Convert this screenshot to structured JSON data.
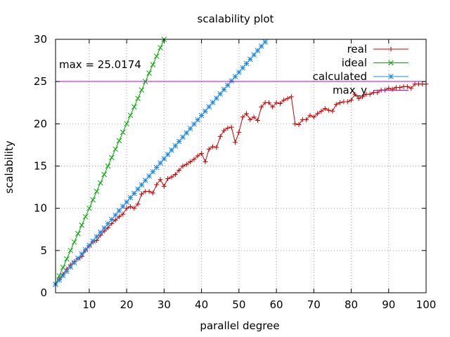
{
  "chart_data": {
    "type": "line",
    "title": "scalability plot",
    "xlabel": "parallel degree",
    "ylabel": "scalability",
    "xlim": [
      1,
      100
    ],
    "ylim": [
      0,
      30
    ],
    "xticks": [
      10,
      20,
      30,
      40,
      50,
      60,
      70,
      80,
      90,
      100
    ],
    "yticks": [
      0,
      5,
      10,
      15,
      20,
      25,
      30
    ],
    "grid": true,
    "legend_position": "top-right",
    "annotation": "max = 25.0174",
    "series": [
      {
        "name": "real",
        "color": "#cc0000",
        "marker": "plus",
        "x": [
          1,
          2,
          3,
          4,
          5,
          6,
          7,
          8,
          9,
          10,
          11,
          12,
          13,
          14,
          15,
          16,
          17,
          18,
          19,
          20,
          21,
          22,
          23,
          24,
          25,
          26,
          27,
          28,
          29,
          30,
          31,
          32,
          33,
          34,
          35,
          36,
          37,
          38,
          39,
          40,
          41,
          42,
          43,
          44,
          45,
          46,
          47,
          48,
          49,
          50,
          51,
          52,
          53,
          54,
          55,
          56,
          57,
          58,
          59,
          60,
          61,
          62,
          63,
          64,
          65,
          66,
          67,
          68,
          69,
          70,
          71,
          72,
          73,
          74,
          75,
          76,
          77,
          78,
          79,
          80,
          81,
          82,
          83,
          84,
          85,
          86,
          87,
          88,
          89,
          90,
          91,
          92,
          93,
          94,
          95,
          96,
          97,
          98,
          99,
          100
        ],
        "values": [
          1.0,
          1.6,
          2.2,
          2.8,
          3.3,
          3.7,
          4.0,
          4.3,
          5.0,
          5.5,
          6.0,
          6.2,
          6.8,
          7.3,
          7.7,
          8.2,
          8.6,
          9.0,
          9.3,
          10.0,
          10.2,
          10.0,
          10.5,
          11.7,
          12.0,
          12.0,
          11.8,
          12.8,
          13.4,
          12.6,
          13.5,
          13.7,
          14.0,
          14.5,
          15.0,
          15.2,
          15.5,
          15.8,
          16.2,
          16.5,
          15.5,
          17.0,
          17.3,
          17.2,
          18.5,
          19.2,
          19.5,
          19.6,
          17.8,
          19.0,
          20.8,
          21.2,
          20.5,
          20.8,
          20.4,
          22.0,
          22.5,
          22.5,
          22.0,
          22.5,
          22.4,
          22.8,
          23.0,
          23.2,
          20.0,
          19.9,
          20.5,
          20.5,
          21.0,
          20.8,
          21.2,
          21.5,
          21.8,
          21.6,
          21.5,
          22.3,
          22.5,
          22.6,
          22.6,
          22.8,
          23.5,
          23.0,
          23.2,
          23.5,
          23.5,
          23.7,
          23.7,
          24.0,
          24.0,
          24.2,
          24.1,
          24.3,
          24.3,
          24.4,
          24.4,
          24.2,
          24.7,
          24.7,
          24.7,
          24.7
        ]
      },
      {
        "name": "ideal",
        "color": "#00aa00",
        "marker": "x",
        "x": [
          1,
          2,
          3,
          4,
          5,
          6,
          7,
          8,
          9,
          10,
          11,
          12,
          13,
          14,
          15,
          16,
          17,
          18,
          19,
          20,
          21,
          22,
          23,
          24,
          25,
          26,
          27,
          28,
          29,
          30
        ],
        "values": [
          1,
          2,
          3,
          4,
          5,
          6,
          7,
          8,
          9,
          10,
          11,
          12,
          13,
          14,
          15,
          16,
          17,
          18,
          19,
          20,
          21,
          22,
          23,
          24,
          25,
          26,
          27,
          28,
          29,
          30
        ]
      },
      {
        "name": "calculated",
        "color": "#1e88e5",
        "marker": "star",
        "x": [
          1,
          2,
          3,
          4,
          5,
          6,
          7,
          8,
          9,
          10,
          11,
          12,
          13,
          14,
          15,
          16,
          17,
          18,
          19,
          20,
          21,
          22,
          23,
          24,
          25,
          26,
          27,
          28,
          29,
          30,
          31,
          32,
          33,
          34,
          35,
          36,
          37,
          38,
          39,
          40,
          41,
          42,
          43,
          44,
          45,
          46,
          47,
          48,
          49,
          50,
          51,
          52,
          53,
          54,
          55,
          56,
          57
        ],
        "values": [
          1.0,
          1.51,
          2.02,
          2.54,
          3.05,
          3.56,
          4.07,
          4.59,
          5.1,
          5.61,
          6.12,
          6.64,
          7.15,
          7.66,
          8.17,
          8.68,
          9.2,
          9.71,
          10.22,
          10.73,
          11.25,
          11.76,
          12.27,
          12.78,
          13.3,
          13.81,
          14.32,
          14.83,
          15.35,
          15.86,
          16.37,
          16.88,
          17.39,
          17.91,
          18.42,
          18.93,
          19.44,
          19.96,
          20.47,
          20.98,
          21.49,
          22.01,
          22.52,
          23.03,
          23.54,
          24.06,
          24.57,
          25.08,
          25.59,
          26.1,
          26.62,
          27.13,
          27.64,
          28.15,
          28.67,
          29.18,
          29.69
        ]
      },
      {
        "name": "max_y",
        "color": "#cc00cc",
        "marker": "none",
        "x": [
          1,
          100
        ],
        "values": [
          25.0174,
          25.0174
        ]
      }
    ],
    "legend": [
      "real",
      "ideal",
      "calculated",
      "max_y"
    ]
  }
}
